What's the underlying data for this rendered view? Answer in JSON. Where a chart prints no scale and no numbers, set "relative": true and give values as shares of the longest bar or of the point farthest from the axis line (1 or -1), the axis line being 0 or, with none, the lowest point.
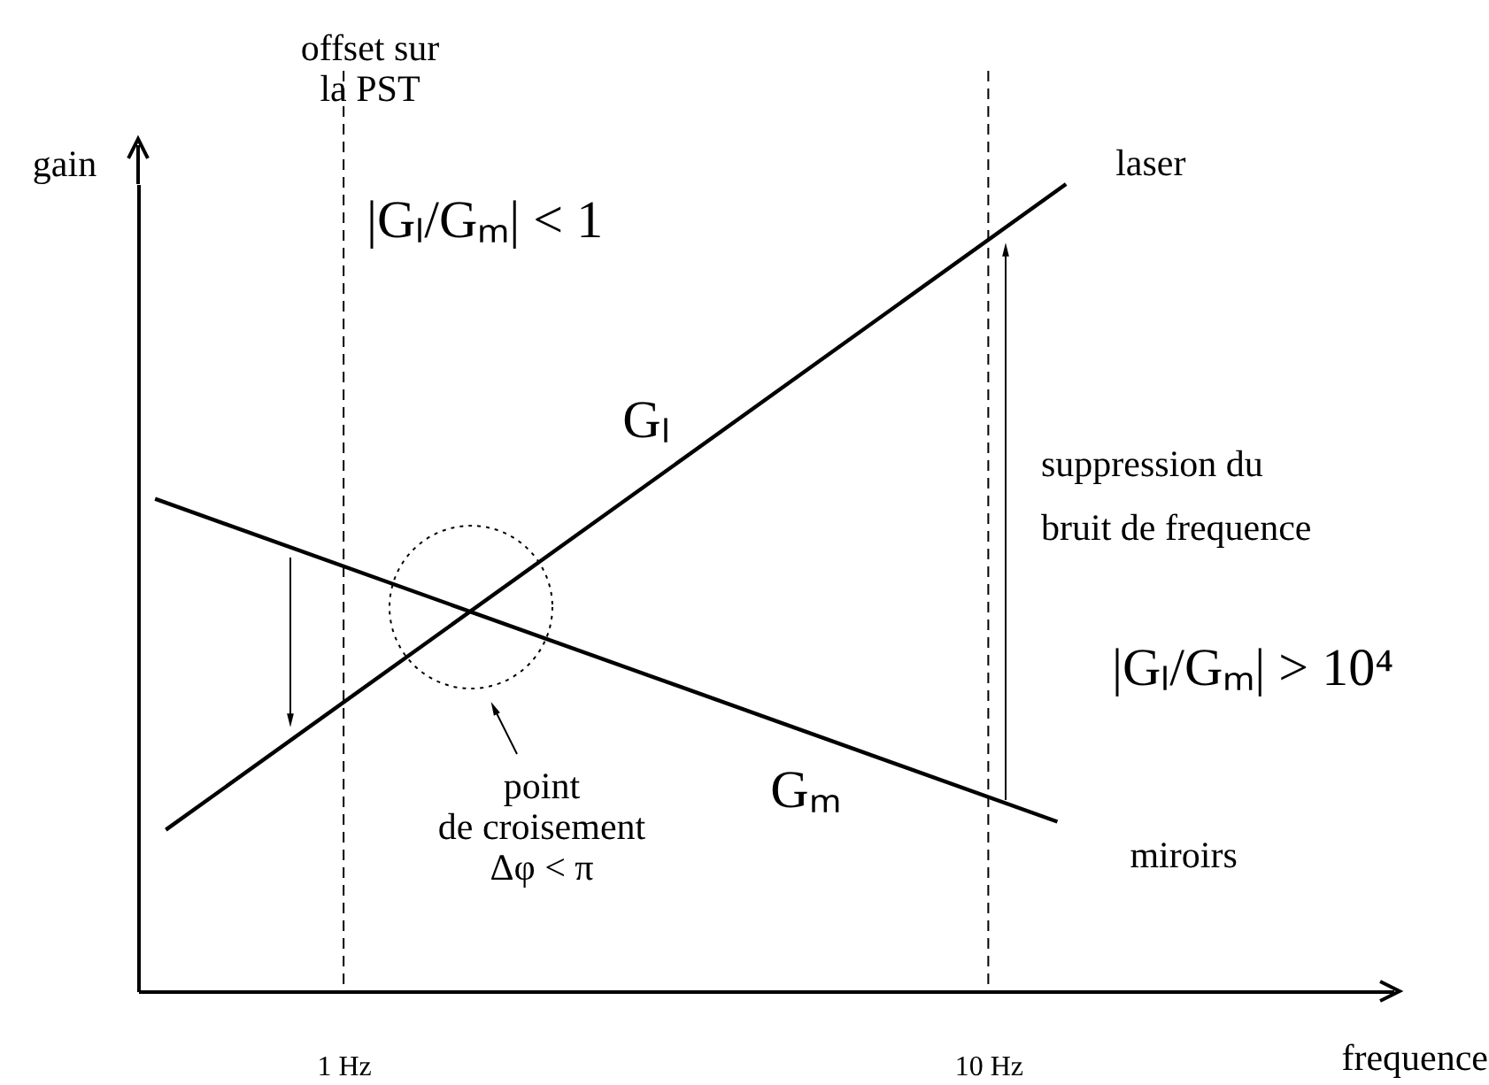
{
  "chart_data": {
    "type": "line",
    "xlabel": "frequence",
    "ylabel": "gain",
    "log": "x",
    "xlim": [
      0.48,
      42.5
    ],
    "xticks": [
      {
        "value": 1,
        "label": "1 Hz"
      },
      {
        "value": 10,
        "label": "10 Hz"
      }
    ],
    "relative": true,
    "grid": false,
    "marker": "none",
    "line_style": "solid",
    "ref_lines": [
      {
        "axis": "x",
        "value": 1,
        "line_style": "dashed",
        "color": "#000000"
      },
      {
        "axis": "x",
        "value": 10,
        "line_style": "dashed",
        "color": "#000000"
      }
    ],
    "series": [
      {
        "name": "laser",
        "color": "#000000",
        "x": [
          0.53,
          13.2
        ],
        "values": [
          0.2,
          1
        ]
      },
      {
        "name": "miroirs",
        "color": "#000000",
        "x": [
          0.51,
          12.8
        ],
        "values": [
          0.61,
          0.21
        ]
      }
    ],
    "annotations": [
      "offset sur la PST",
      "|Gₗ/Gₘ| < 1",
      "Gₗ",
      "Gₘ",
      "suppression du bruit de frequence",
      "|Gₗ/Gₘ| > 10⁴",
      "point de croisement Δφ < π"
    ]
  }
}
